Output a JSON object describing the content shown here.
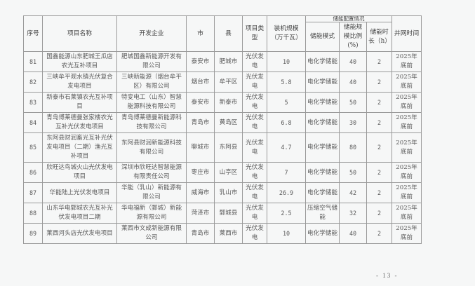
{
  "header": {
    "seq": "序号",
    "name": "项目名称",
    "developer": "开发企业",
    "city": "市",
    "county": "县",
    "type": "项目类型",
    "capacity": "装机规模（万千瓦）",
    "storage_group": "储能配置情况",
    "storage_mode": "储能模式",
    "storage_ratio": "储能规模比例(%)",
    "storage_duration": "储能时长（h）",
    "grid_time": "并网时间"
  },
  "rows": [
    {
      "seq": "81",
      "name": "国鑫能源山东肥城王瓜店农光互补项目",
      "developer": "肥城国鑫新能源开发有限公司",
      "city": "泰安市",
      "county": "肥城市",
      "type": "光伏发电",
      "capacity": "10",
      "mode": "电化学储能",
      "ratio": "40",
      "duration": "2",
      "grid": "2025年底前"
    },
    {
      "seq": "82",
      "name": "三峡牟平观水镇光伏复合发电项目",
      "developer": "三峡新能源（烟台牟平区）有限公司",
      "city": "烟台市",
      "county": "牟平区",
      "type": "光伏发电",
      "capacity": "5.8",
      "mode": "电化学储能",
      "ratio": "40",
      "duration": "2",
      "grid": "2025年底前"
    },
    {
      "seq": "83",
      "name": "新泰市石莱镇农光互补项目",
      "developer": "特变电工（山东）智慧能源科技有限公司",
      "city": "泰安市",
      "county": "新泰市",
      "type": "光伏发电",
      "capacity": "5",
      "mode": "电化学储能",
      "ratio": "50",
      "duration": "2",
      "grid": "2025年底前"
    },
    {
      "seq": "84",
      "name": "青岛博莱德曼张家楼农光互补光伏发电项目",
      "developer": "青岛博莱德曼新能源科技有限公司",
      "city": "青岛市",
      "county": "黄岛区",
      "type": "光伏发电",
      "capacity": "6.8",
      "mode": "电化学储能",
      "ratio": "30",
      "duration": "2",
      "grid": "2025年底前"
    },
    {
      "seq": "85",
      "name": "东阿县财润畜光互补光伏发电项目（二期）渔光互补项目",
      "developer": "东阿县财润新能源科技有限公司",
      "city": "聊城市",
      "county": "东阿县",
      "type": "光伏发电",
      "capacity": "4.7",
      "mode": "电化学储能",
      "ratio": "80",
      "duration": "2",
      "grid": "2025年底前"
    },
    {
      "seq": "86",
      "name": "欣旺达鸟城火山光伏发电项目",
      "developer": "深圳市欣旺达智慧能源有限责任公司",
      "city": "枣庄市",
      "county": "山亭区",
      "type": "光伏发电",
      "capacity": "7",
      "mode": "电化学储能",
      "ratio": "50",
      "duration": "2",
      "grid": "2025年底前"
    },
    {
      "seq": "87",
      "name": "华能陆上光伏发电项目",
      "developer": "华能（乳山）新能源有限公司",
      "city": "威海市",
      "county": "乳山市",
      "type": "光伏发电",
      "capacity": "26.9",
      "mode": "电化学储能",
      "ratio": "42",
      "duration": "2",
      "grid": "2025年底前"
    },
    {
      "seq": "88",
      "name": "山东华电鄄城农光互补光伏发电项目二期",
      "developer": "华电福新（鄄城）新能源有限公司",
      "city": "菏泽市",
      "county": "鄄城县",
      "type": "光伏发电",
      "capacity": "2.5",
      "mode": "压缩空气储能",
      "ratio": "32",
      "duration": "2",
      "grid": "2025年底前"
    },
    {
      "seq": "89",
      "name": "莱西河头店光伏发电项目",
      "developer": "莱西市文成新能源有限公司",
      "city": "青岛市",
      "county": "莱西市",
      "type": "光伏发电",
      "capacity": "10",
      "mode": "电化学储能",
      "ratio": "40",
      "duration": "2",
      "grid": "2025年底前"
    }
  ],
  "footer": {
    "page_number": "- 13 -"
  }
}
